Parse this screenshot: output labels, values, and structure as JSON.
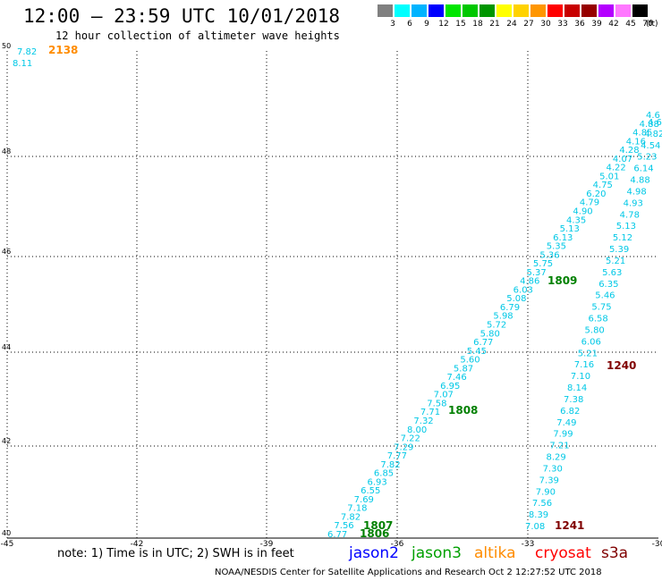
{
  "header": {
    "title": "12:00 — 23:59 UTC 10/01/2018",
    "subtitle": "12 hour collection of altimeter wave heights"
  },
  "legend": {
    "unit": "(ft)",
    "bins": [
      {
        "label": "3",
        "color": "#808080"
      },
      {
        "label": "6",
        "color": "#00ffff"
      },
      {
        "label": "9",
        "color": "#00b4ff"
      },
      {
        "label": "12",
        "color": "#0000ff"
      },
      {
        "label": "15",
        "color": "#00e600"
      },
      {
        "label": "18",
        "color": "#00c800"
      },
      {
        "label": "21",
        "color": "#009600"
      },
      {
        "label": "24",
        "color": "#ffff00"
      },
      {
        "label": "27",
        "color": "#ffd200"
      },
      {
        "label": "30",
        "color": "#ff9600"
      },
      {
        "label": "33",
        "color": "#ff0000"
      },
      {
        "label": "36",
        "color": "#c80000"
      },
      {
        "label": "39",
        "color": "#960000"
      },
      {
        "label": "42",
        "color": "#b400ff"
      },
      {
        "label": "45",
        "color": "#ff78ff"
      },
      {
        "label": "70",
        "color": "#000000"
      }
    ]
  },
  "axes": {
    "lon_ticks": [
      "-45",
      "-42",
      "-39",
      "-36",
      "-33",
      "-30"
    ],
    "lat_ticks": [
      "40",
      "42",
      "44",
      "46",
      "48",
      "50"
    ]
  },
  "colors": {
    "wave": "#00c8e6",
    "jason3": "#008000",
    "cryosat": "#800000",
    "altika": "#ff8c00"
  },
  "tracks": [
    {
      "name": "left_track",
      "values": [
        "6.77",
        "7.56",
        "7.82",
        "7.18",
        "7.69",
        "6.55",
        "6.93",
        "6.85",
        "7.82",
        "7.77",
        "7.29",
        "7.22",
        "8.00",
        "7.32",
        "7.71",
        "7.58",
        "7.07",
        "6.95",
        "7.46",
        "5.87",
        "5.60",
        "5.45",
        "6.77",
        "5.80",
        "5.72",
        "5.98",
        "6.79",
        "5.08",
        "6.03",
        "4.86",
        "5.37",
        "5.75",
        "5.36",
        "5.35",
        "6.13",
        "5.13",
        "4.35",
        "4.90",
        "4.79",
        "6.20",
        "4.75",
        "5.01",
        "4.22",
        "4.07",
        "4.28",
        "4.16",
        "4.85",
        "4.88",
        "4.6"
      ]
    },
    {
      "name": "right_track",
      "values": [
        "7.08",
        "8.39",
        "7.56",
        "7.90",
        "7.39",
        "7.30",
        "8.29",
        "7.21",
        "7.99",
        "7.49",
        "6.82",
        "7.38",
        "8.14",
        "7.10",
        "7.16",
        "5.21",
        "6.06",
        "5.80",
        "6.58",
        "5.75",
        "5.46",
        "6.35",
        "5.63",
        "5.21",
        "5.39",
        "5.12",
        "5.13",
        "4.78",
        "4.93",
        "4.98",
        "4.88",
        "6.14",
        "5.23",
        "4.54",
        "4.82",
        "4.64"
      ]
    }
  ],
  "time_labels": [
    {
      "text": "1807",
      "color": "jason3"
    },
    {
      "text": "1806",
      "color": "jason3"
    },
    {
      "text": "1808",
      "color": "jason3"
    },
    {
      "text": "1809",
      "color": "jason3"
    },
    {
      "text": "1240",
      "color": "cryosat"
    },
    {
      "text": "1241",
      "color": "cryosat"
    },
    {
      "text": "2138",
      "color": "altika"
    }
  ],
  "corner_values": [
    "7.82",
    "8.11"
  ],
  "note": "note: 1) Time is in UTC; 2) SWH is in feet",
  "satellites": [
    {
      "name": "jason2",
      "color": "#0000ff"
    },
    {
      "name": "jason3",
      "color": "#00a000"
    },
    {
      "name": "altika",
      "color": "#ff8c00"
    },
    {
      "name": "cryosat",
      "color": "#ff0000"
    },
    {
      "name": "s3a",
      "color": "#800000"
    }
  ],
  "footer": "NOAA/NESDIS Center for Satellite Applications and Research    Oct  2 12:27:52 UTC 2018"
}
